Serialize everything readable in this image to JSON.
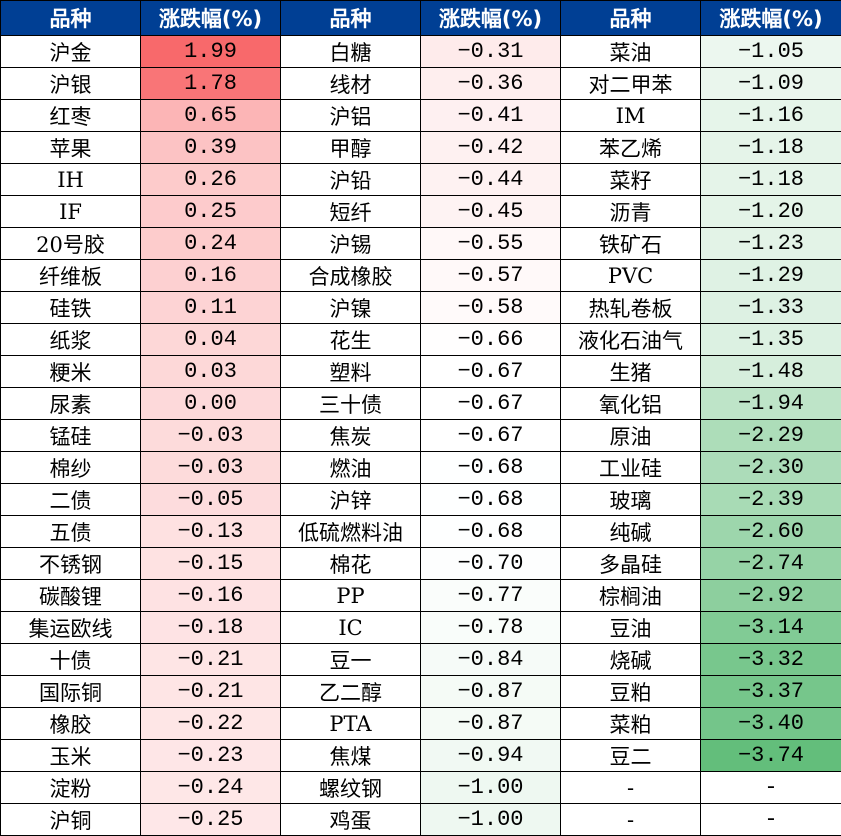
{
  "chart_data": {
    "type": "table",
    "headers": [
      "品种",
      "涨跌幅(%)",
      "品种",
      "涨跌幅(%)",
      "品种",
      "涨跌幅(%)"
    ],
    "color_scale": {
      "max_color": "#F8696B",
      "mid_color": "#FFFFFF",
      "min_color": "#63BE7B"
    },
    "rows": [
      [
        "沪金",
        "1.99",
        "白糖",
        "-0.31",
        "菜油",
        "-1.05"
      ],
      [
        "沪银",
        "1.78",
        "线材",
        "-0.36",
        "对二甲苯",
        "-1.09"
      ],
      [
        "红枣",
        "0.65",
        "沪铝",
        "-0.41",
        "IM",
        "-1.16"
      ],
      [
        "苹果",
        "0.39",
        "甲醇",
        "-0.42",
        "苯乙烯",
        "-1.18"
      ],
      [
        "IH",
        "0.26",
        "沪铅",
        "-0.44",
        "菜籽",
        "-1.18"
      ],
      [
        "IF",
        "0.25",
        "短纤",
        "-0.45",
        "沥青",
        "-1.20"
      ],
      [
        "20号胶",
        "0.24",
        "沪锡",
        "-0.55",
        "铁矿石",
        "-1.23"
      ],
      [
        "纤维板",
        "0.16",
        "合成橡胶",
        "-0.57",
        "PVC",
        "-1.29"
      ],
      [
        "硅铁",
        "0.11",
        "沪镍",
        "-0.58",
        "热轧卷板",
        "-1.33"
      ],
      [
        "纸浆",
        "0.04",
        "花生",
        "-0.66",
        "液化石油气",
        "-1.35"
      ],
      [
        "粳米",
        "0.03",
        "塑料",
        "-0.67",
        "生猪",
        "-1.48"
      ],
      [
        "尿素",
        "0.00",
        "三十债",
        "-0.67",
        "氧化铝",
        "-1.94"
      ],
      [
        "锰硅",
        "-0.03",
        "焦炭",
        "-0.67",
        "原油",
        "-2.29"
      ],
      [
        "棉纱",
        "-0.03",
        "燃油",
        "-0.68",
        "工业硅",
        "-2.30"
      ],
      [
        "二债",
        "-0.05",
        "沪锌",
        "-0.68",
        "玻璃",
        "-2.39"
      ],
      [
        "五债",
        "-0.13",
        "低硫燃料油",
        "-0.68",
        "纯碱",
        "-2.60"
      ],
      [
        "不锈钢",
        "-0.15",
        "棉花",
        "-0.70",
        "多晶硅",
        "-2.74"
      ],
      [
        "碳酸锂",
        "-0.16",
        "PP",
        "-0.77",
        "棕榈油",
        "-2.92"
      ],
      [
        "集运欧线",
        "-0.18",
        "IC",
        "-0.78",
        "豆油",
        "-3.14"
      ],
      [
        "十债",
        "-0.21",
        "豆一",
        "-0.84",
        "烧碱",
        "-3.32"
      ],
      [
        "国际铜",
        "-0.21",
        "乙二醇",
        "-0.87",
        "豆粕",
        "-3.37"
      ],
      [
        "橡胶",
        "-0.22",
        "PTA",
        "-0.87",
        "菜粕",
        "-3.40"
      ],
      [
        "玉米",
        "-0.23",
        "焦煤",
        "-0.94",
        "豆二",
        "-3.74"
      ],
      [
        "淀粉",
        "-0.24",
        "螺纹钢",
        "-1.00",
        "-",
        "-"
      ],
      [
        "沪铜",
        "-0.25",
        "鸡蛋",
        "-1.00",
        "-",
        "-"
      ]
    ]
  }
}
